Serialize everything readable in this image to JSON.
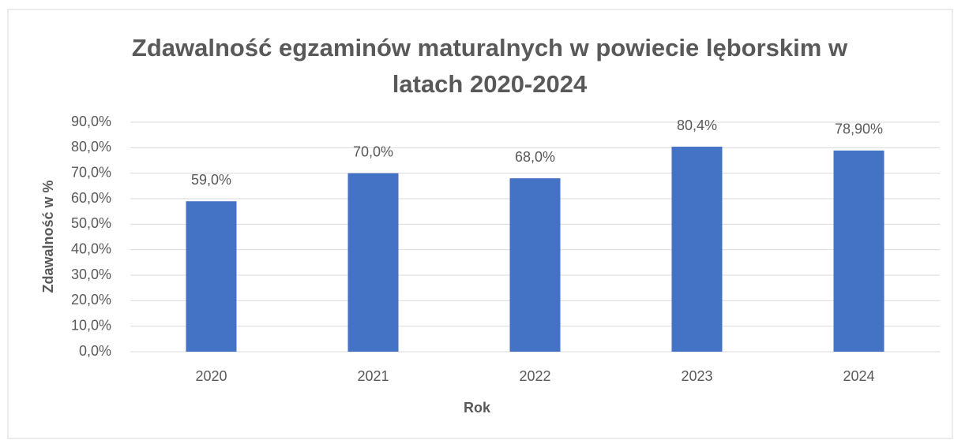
{
  "chart_data": {
    "type": "bar",
    "title": "Zdawalność egzaminów maturalnych w powiecie lęborskim w latach 2020-2024",
    "x_label": "Rok",
    "y_label": "Zdawalność w %",
    "categories": [
      "2020",
      "2021",
      "2022",
      "2023",
      "2024"
    ],
    "values": [
      59,
      70,
      68,
      80.4,
      78.9
    ],
    "value_labels": [
      "59,0%",
      "70,0%",
      "68,0%",
      "80,4%",
      "78,90%"
    ],
    "color": "#4472c4",
    "ylim": [
      0,
      90
    ],
    "yticks": [
      {
        "value": 0,
        "label": "0,0%"
      },
      {
        "value": 10,
        "label": "10,0%"
      },
      {
        "value": 20,
        "label": "20,0%"
      },
      {
        "value": 30,
        "label": "30,0%"
      },
      {
        "value": 40,
        "label": "40,0%"
      },
      {
        "value": 50,
        "label": "50,0%"
      },
      {
        "value": 60,
        "label": "60,0%"
      },
      {
        "value": 70,
        "label": "70,0%"
      },
      {
        "value": 80,
        "label": "80,0%"
      },
      {
        "value": 90,
        "label": "90,0%"
      }
    ],
    "grid": true
  }
}
